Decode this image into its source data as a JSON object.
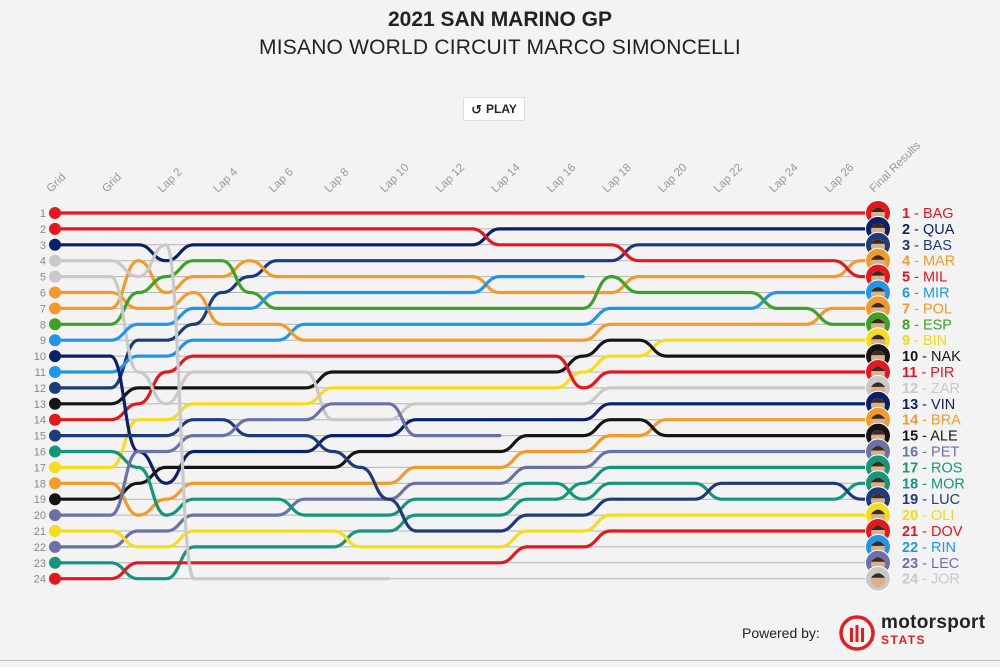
{
  "header": {
    "title": "2021 SAN MARINO GP",
    "subtitle": "MISANO WORLD CIRCUIT MARCO SIMONCELLI"
  },
  "controls": {
    "play_label": "PLAY",
    "play_icon": "replay-icon"
  },
  "footer": {
    "powered_by": "Powered by:",
    "brand_word": "motorsport",
    "brand_sub": "STATS",
    "brand_color": "#e02020"
  },
  "chart_data": {
    "type": "bump",
    "title": "2021 SAN MARINO GP",
    "subtitle": "MISANO WORLD CIRCUIT MARCO SIMONCELLI",
    "x_labels": [
      "Grid",
      "",
      "Grid",
      "",
      "Lap 2",
      "",
      "Lap 4",
      "",
      "Lap 6",
      "",
      "Lap 8",
      "",
      "Lap 10",
      "",
      "Lap 12",
      "",
      "Lap 14",
      "",
      "Lap 16",
      "",
      "Lap 18",
      "",
      "Lap 20",
      "",
      "Lap 22",
      "",
      "Lap 24",
      "",
      "Lap 26",
      ""
    ],
    "final_label": "Final Results",
    "row_labels": [
      "1",
      "2",
      "3",
      "4",
      "5",
      "6",
      "7",
      "8",
      "9",
      "10",
      "11",
      "12",
      "13",
      "14",
      "15",
      "16",
      "17",
      "18",
      "19",
      "20",
      "21",
      "22",
      "23",
      "24"
    ],
    "y_range": [
      1,
      24
    ],
    "y_inverted": true,
    "grid": true,
    "series": [
      {
        "name": "BAG",
        "final": 1,
        "color": "#e3171d",
        "positions": [
          1,
          1,
          1,
          1,
          1,
          1,
          1,
          1,
          1,
          1,
          1,
          1,
          1,
          1,
          1,
          1,
          1,
          1,
          1,
          1,
          1,
          1,
          1,
          1,
          1,
          1,
          1,
          1,
          1,
          1
        ]
      },
      {
        "name": "QUA",
        "final": 2,
        "color": "#0b1f6b",
        "positions": [
          3,
          3,
          3,
          3,
          4,
          3,
          3,
          3,
          3,
          3,
          3,
          3,
          3,
          3,
          3,
          3,
          2,
          2,
          2,
          2,
          2,
          2,
          2,
          2,
          2,
          2,
          2,
          2,
          2,
          2
        ]
      },
      {
        "name": "BAS",
        "final": 3,
        "color": "#1d3b7a",
        "positions": [
          12,
          12,
          12,
          9,
          9,
          8,
          6,
          5,
          4,
          4,
          4,
          4,
          4,
          4,
          4,
          4,
          4,
          4,
          4,
          4,
          4,
          3,
          3,
          3,
          3,
          3,
          3,
          3,
          3,
          3
        ]
      },
      {
        "name": "MAR",
        "final": 4,
        "color": "#f39a2b",
        "positions": [
          7,
          7,
          7,
          4,
          6,
          5,
          5,
          4,
          5,
          5,
          5,
          5,
          5,
          5,
          5,
          5,
          6,
          6,
          6,
          6,
          6,
          5,
          5,
          5,
          5,
          5,
          5,
          5,
          5,
          4
        ]
      },
      {
        "name": "MIL",
        "final": 5,
        "color": "#e3171d",
        "positions": [
          2,
          2,
          2,
          2,
          2,
          2,
          2,
          2,
          2,
          2,
          2,
          2,
          2,
          2,
          2,
          2,
          3,
          3,
          3,
          3,
          3,
          4,
          4,
          4,
          4,
          4,
          4,
          4,
          4,
          5
        ]
      },
      {
        "name": "MIR",
        "final": 6,
        "color": "#2196e8",
        "positions": [
          11,
          11,
          11,
          10,
          10,
          9,
          9,
          9,
          9,
          8,
          8,
          8,
          8,
          8,
          8,
          8,
          8,
          8,
          8,
          8,
          7,
          7,
          7,
          7,
          7,
          7,
          6,
          6,
          6,
          6
        ]
      },
      {
        "name": "POL",
        "final": 7,
        "color": "#f39a2b",
        "positions": [
          6,
          6,
          6,
          7,
          7,
          6,
          8,
          8,
          8,
          9,
          9,
          9,
          9,
          9,
          9,
          9,
          9,
          9,
          9,
          9,
          8,
          8,
          8,
          8,
          8,
          8,
          8,
          8,
          7,
          7
        ]
      },
      {
        "name": "ESP",
        "final": 8,
        "color": "#3ea127",
        "positions": [
          8,
          8,
          8,
          6,
          5,
          4,
          4,
          6,
          7,
          7,
          7,
          7,
          7,
          7,
          7,
          7,
          7,
          7,
          7,
          7,
          5,
          6,
          6,
          6,
          6,
          6,
          7,
          7,
          8,
          8
        ]
      },
      {
        "name": "BIN",
        "final": 9,
        "color": "#f5dd1d",
        "positions": [
          17,
          17,
          17,
          14,
          14,
          13,
          13,
          13,
          13,
          13,
          12,
          12,
          12,
          12,
          12,
          12,
          12,
          12,
          12,
          11,
          10,
          10,
          9,
          9,
          9,
          9,
          9,
          9,
          9,
          9
        ]
      },
      {
        "name": "NAK",
        "final": 10,
        "color": "#151515",
        "positions": [
          13,
          13,
          13,
          12,
          12,
          12,
          12,
          12,
          12,
          12,
          11,
          11,
          11,
          11,
          11,
          11,
          11,
          11,
          11,
          10,
          9,
          9,
          10,
          10,
          10,
          10,
          10,
          10,
          10,
          10
        ]
      },
      {
        "name": "PIR",
        "final": 11,
        "color": "#e3171d",
        "positions": [
          14,
          14,
          14,
          13,
          11,
          10,
          10,
          10,
          10,
          10,
          10,
          10,
          10,
          10,
          10,
          10,
          10,
          10,
          10,
          12,
          11,
          11,
          11,
          11,
          11,
          11,
          11,
          11,
          11,
          11
        ]
      },
      {
        "name": "ZAR",
        "final": 12,
        "color": "#c9c9c9",
        "positions": [
          5,
          5,
          5,
          11,
          13,
          11,
          11,
          11,
          11,
          11,
          14,
          14,
          14,
          13,
          13,
          13,
          13,
          13,
          13,
          13,
          12,
          12,
          12,
          12,
          12,
          12,
          12,
          12,
          12,
          12
        ]
      },
      {
        "name": "VIN",
        "final": 13,
        "color": "#0b1f6b",
        "positions": [
          10,
          10,
          10,
          16,
          18,
          16,
          16,
          16,
          16,
          16,
          15,
          15,
          15,
          14,
          14,
          14,
          14,
          14,
          14,
          14,
          13,
          13,
          13,
          13,
          13,
          13,
          13,
          13,
          13,
          13
        ]
      },
      {
        "name": "BRA",
        "final": 14,
        "color": "#f39a2b",
        "positions": [
          18,
          18,
          18,
          20,
          19,
          18,
          18,
          18,
          18,
          18,
          18,
          18,
          18,
          17,
          17,
          17,
          17,
          16,
          16,
          16,
          15,
          15,
          14,
          14,
          14,
          14,
          14,
          14,
          14,
          14
        ]
      },
      {
        "name": "ALE",
        "final": 15,
        "color": "#151515",
        "positions": [
          19,
          19,
          19,
          18,
          17,
          17,
          17,
          17,
          17,
          17,
          17,
          16,
          16,
          16,
          16,
          16,
          16,
          15,
          15,
          15,
          14,
          14,
          15,
          15,
          15,
          15,
          15,
          15,
          15,
          15
        ]
      },
      {
        "name": "PET",
        "final": 16,
        "color": "#6b70a8",
        "positions": [
          22,
          22,
          22,
          21,
          21,
          20,
          20,
          20,
          20,
          19,
          19,
          19,
          19,
          18,
          18,
          18,
          18,
          17,
          17,
          17,
          16,
          16,
          16,
          16,
          16,
          16,
          16,
          16,
          16,
          16
        ]
      },
      {
        "name": "ROS",
        "final": 17,
        "color": "#15967a",
        "positions": [
          23,
          23,
          23,
          24,
          24,
          22,
          22,
          22,
          22,
          22,
          22,
          21,
          21,
          20,
          20,
          20,
          20,
          19,
          19,
          18,
          17,
          17,
          17,
          17,
          17,
          17,
          17,
          17,
          17,
          17
        ]
      },
      {
        "name": "MOR",
        "final": 18,
        "color": "#15967a",
        "positions": [
          16,
          16,
          16,
          17,
          20,
          19,
          19,
          19,
          19,
          20,
          20,
          20,
          20,
          19,
          19,
          19,
          19,
          18,
          18,
          19,
          18,
          18,
          18,
          18,
          19,
          19,
          19,
          19,
          19,
          18
        ]
      },
      {
        "name": "LUC",
        "final": 19,
        "color": "#1d3b7a",
        "positions": [
          15,
          15,
          15,
          15,
          15,
          14,
          14,
          15,
          15,
          15,
          16,
          17,
          19,
          21,
          21,
          21,
          21,
          20,
          20,
          20,
          19,
          19,
          19,
          19,
          18,
          18,
          18,
          18,
          18,
          19
        ]
      },
      {
        "name": "OLI",
        "final": 20,
        "color": "#f5dd1d",
        "positions": [
          21,
          21,
          21,
          22,
          22,
          21,
          21,
          21,
          21,
          21,
          21,
          22,
          22,
          22,
          22,
          22,
          22,
          21,
          21,
          21,
          20,
          20,
          20,
          20,
          20,
          20,
          20,
          20,
          20,
          20
        ]
      },
      {
        "name": "DOV",
        "final": 21,
        "color": "#e3171d",
        "positions": [
          24,
          24,
          24,
          23,
          23,
          23,
          23,
          23,
          23,
          23,
          23,
          23,
          23,
          23,
          23,
          23,
          23,
          22,
          22,
          22,
          21,
          21,
          21,
          21,
          21,
          21,
          21,
          21,
          21,
          21
        ]
      },
      {
        "name": "RIN",
        "final": 22,
        "color": "#2196e8",
        "positions": [
          9,
          9,
          9,
          8,
          8,
          7,
          7,
          7,
          6,
          6,
          6,
          6,
          6,
          6,
          6,
          6,
          5,
          5,
          5,
          5,
          null,
          null,
          null,
          null,
          null,
          null,
          null,
          null,
          null,
          null
        ]
      },
      {
        "name": "LEC",
        "final": 23,
        "color": "#6b70a8",
        "positions": [
          20,
          20,
          20,
          16,
          16,
          15,
          15,
          14,
          14,
          14,
          13,
          13,
          13,
          15,
          15,
          15,
          15,
          null,
          null,
          null,
          null,
          null,
          null,
          null,
          null,
          null,
          null,
          null,
          null,
          null
        ]
      },
      {
        "name": "JOR",
        "final": 24,
        "color": "#c9c9c9",
        "positions": [
          4,
          4,
          4,
          5,
          3,
          24,
          24,
          24,
          24,
          24,
          24,
          24,
          24,
          null,
          null,
          null,
          null,
          null,
          null,
          null,
          null,
          null,
          null,
          null,
          null,
          null,
          null,
          null,
          null,
          null
        ]
      }
    ]
  }
}
